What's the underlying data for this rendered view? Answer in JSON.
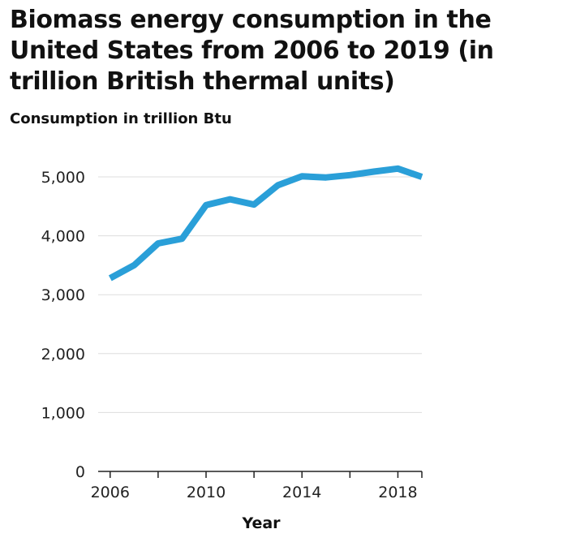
{
  "chart_data": {
    "type": "line",
    "title": "Biomass energy consumption in the United States from 2006 to 2019 (in trillion British thermal units)",
    "ylabel": "Consumption in trillion Btu",
    "xlabel": "Year",
    "x": [
      2006,
      2007,
      2008,
      2009,
      2010,
      2011,
      2012,
      2013,
      2014,
      2015,
      2016,
      2017,
      2018,
      2019
    ],
    "series": [
      {
        "values": [
          3280,
          3500,
          3870,
          3950,
          4520,
          4620,
          4530,
          4860,
          5010,
          4990,
          5030,
          5090,
          5140,
          5000
        ]
      }
    ],
    "xlim": [
      2005.5,
      2019
    ],
    "ylim": [
      0,
      5000
    ],
    "xticks": [
      2006,
      2010,
      2014,
      2018
    ],
    "yticks": [
      0,
      1000,
      2000,
      3000,
      4000,
      5000
    ],
    "xtick_labels": [
      "2006",
      "2010",
      "2014",
      "2018"
    ],
    "ytick_labels": [
      "0",
      "1,000",
      "2,000",
      "3,000",
      "4,000",
      "5,000"
    ],
    "line_color": "#2a9fd8",
    "grid": "horizontal",
    "grid_color": "#dddddd"
  }
}
